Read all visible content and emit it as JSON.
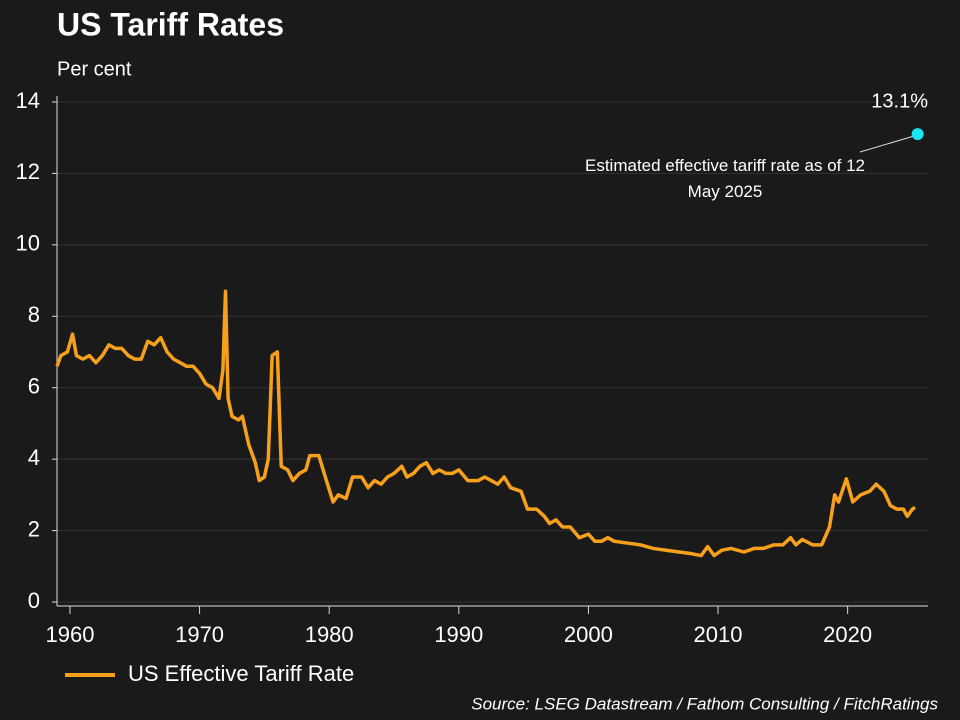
{
  "chart_data": {
    "type": "line",
    "title": "US Tariff Rates",
    "subtitle": "Per cent",
    "source": "Source: LSEG Datastream / Fathom Consulting / FitchRatings",
    "xlim": [
      1959,
      2026.2
    ],
    "xticks": [
      1960,
      1970,
      1980,
      1990,
      2000,
      2010,
      2020
    ],
    "ylim": [
      0,
      14
    ],
    "yticks": [
      0,
      2,
      4,
      6,
      8,
      10,
      12,
      14
    ],
    "grid": true,
    "legend": "bottom-left",
    "x": [
      1959.0,
      1959.3,
      1959.8,
      1960.2,
      1960.5,
      1961,
      1961.5,
      1962,
      1962.5,
      1963,
      1963.5,
      1964,
      1964.5,
      1965,
      1965.5,
      1966,
      1966.5,
      1967,
      1967.5,
      1968,
      1968.5,
      1969,
      1969.5,
      1970,
      1970.5,
      1971,
      1971.5,
      1971.8,
      1972.0,
      1972.2,
      1972.5,
      1973,
      1973.3,
      1973.8,
      1974.3,
      1974.6,
      1975,
      1975.3,
      1975.6,
      1976,
      1976.3,
      1976.8,
      1977.2,
      1977.7,
      1978.2,
      1978.5,
      1979.2,
      1979.7,
      1980.3,
      1980.7,
      1981.3,
      1981.8,
      1982.5,
      1983,
      1983.5,
      1984,
      1984.5,
      1985,
      1985.6,
      1986,
      1986.5,
      1987,
      1987.5,
      1988,
      1988.5,
      1989,
      1989.5,
      1990,
      1990.7,
      1991.5,
      1992,
      1992.5,
      1993,
      1993.5,
      1994,
      1994.8,
      1995.3,
      1996,
      1996.6,
      1997,
      1997.5,
      1998,
      1998.6,
      1999.3,
      2000,
      2000.5,
      2001,
      2001.5,
      2002,
      2003,
      2004,
      2005,
      2006,
      2007,
      2008,
      2008.7,
      2009.2,
      2009.7,
      2010.3,
      2011,
      2012,
      2012.8,
      2013.5,
      2014.3,
      2015,
      2015.6,
      2016,
      2016.5,
      2017.3,
      2018,
      2018.6,
      2019,
      2019.3,
      2019.9,
      2020.4,
      2021,
      2021.7,
      2022.2,
      2022.8,
      2023.3,
      2023.8,
      2024.3,
      2024.6,
      2025,
      2025.2
    ],
    "series": [
      {
        "name": "US Effective Tariff Rate",
        "color": "#f7a01b",
        "values": [
          6.6,
          6.9,
          7.0,
          7.5,
          6.9,
          6.8,
          6.9,
          6.7,
          6.9,
          7.2,
          7.1,
          7.1,
          6.9,
          6.8,
          6.8,
          7.3,
          7.2,
          7.4,
          7.0,
          6.8,
          6.7,
          6.6,
          6.6,
          6.4,
          6.1,
          6.0,
          5.7,
          6.5,
          8.7,
          5.7,
          5.2,
          5.1,
          5.2,
          4.4,
          3.9,
          3.4,
          3.5,
          4.0,
          6.9,
          7.0,
          3.8,
          3.7,
          3.4,
          3.6,
          3.7,
          4.1,
          4.1,
          3.5,
          2.8,
          3.0,
          2.9,
          3.5,
          3.5,
          3.2,
          3.4,
          3.3,
          3.5,
          3.6,
          3.8,
          3.5,
          3.6,
          3.8,
          3.9,
          3.6,
          3.7,
          3.6,
          3.6,
          3.7,
          3.4,
          3.4,
          3.5,
          3.4,
          3.3,
          3.5,
          3.2,
          3.1,
          2.6,
          2.6,
          2.4,
          2.2,
          2.3,
          2.1,
          2.1,
          1.8,
          1.9,
          1.7,
          1.7,
          1.8,
          1.7,
          1.65,
          1.6,
          1.5,
          1.45,
          1.4,
          1.35,
          1.3,
          1.55,
          1.3,
          1.45,
          1.5,
          1.4,
          1.5,
          1.5,
          1.6,
          1.6,
          1.8,
          1.6,
          1.75,
          1.6,
          1.6,
          2.1,
          3.0,
          2.8,
          3.45,
          2.8,
          3.0,
          3.1,
          3.3,
          3.1,
          2.7,
          2.6,
          2.6,
          2.4,
          2.6,
          2.65
        ]
      }
    ],
    "highlight": {
      "x": 2025.4,
      "value": 13.1,
      "value_label": "13.1%",
      "color": "#19e6f0",
      "annotation": "Estimated effective tariff rate as of 12 May 2025"
    }
  }
}
